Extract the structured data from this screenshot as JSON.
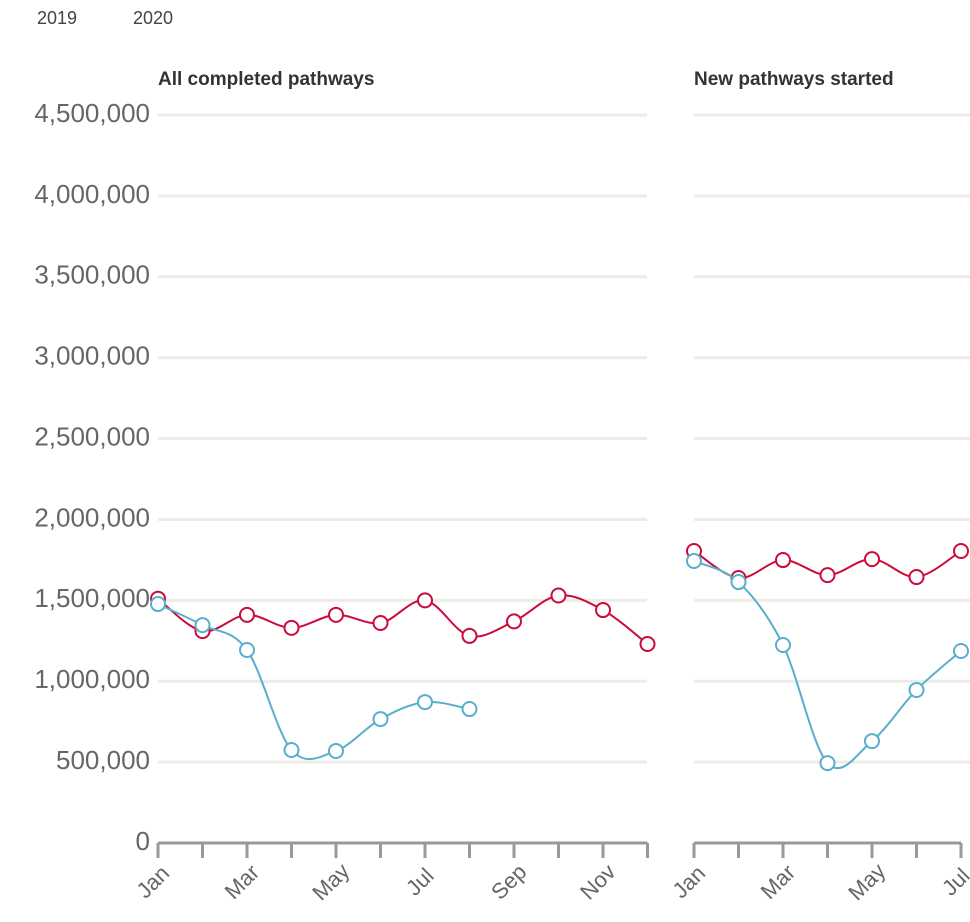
{
  "chart_data": [
    {
      "type": "line",
      "title": "All completed pathways",
      "categories": [
        "Jan",
        null,
        "Mar",
        null,
        "May",
        null,
        "Jul",
        null,
        "Sep",
        null,
        "Nov",
        null
      ],
      "series": [
        {
          "name": "2019",
          "color": "#cc0a3c",
          "values": [
            1510000,
            1310000,
            1410000,
            1330000,
            1410000,
            1360000,
            1500000,
            1280000,
            1370000,
            1530000,
            1440000,
            1230000
          ]
        },
        {
          "name": "2020",
          "color": "#59aecb",
          "values": [
            1477000,
            1347000,
            1193000,
            575000,
            569000,
            766000,
            871000,
            828000,
            null,
            null,
            null,
            null
          ]
        }
      ],
      "ylim": [
        0,
        4500000
      ],
      "yticks": [
        0,
        {
          "value": 500000,
          "label": "500,000"
        },
        {
          "value": 1000000,
          "label": "1,000,000"
        },
        {
          "value": 1500000,
          "label": "1,500,000"
        },
        {
          "value": 2000000,
          "label": "2,000,000"
        },
        {
          "value": 2500000,
          "label": "2,500,000"
        },
        {
          "value": 3000000,
          "label": "3,000,000"
        },
        {
          "value": 3500000,
          "label": "3,500,000"
        },
        {
          "value": 4000000,
          "label": "4,000,000"
        },
        {
          "value": 4500000,
          "label": "4,500,000"
        }
      ],
      "grid": true
    },
    {
      "type": "line",
      "title": "New pathways started",
      "categories": [
        "Jan",
        null,
        "Mar",
        null,
        "May",
        null,
        "Jul"
      ],
      "series": [
        {
          "color": "#cc0a3c",
          "values": [
            1805000,
            1638000,
            1749000,
            1656000,
            1755000,
            1644000,
            1805000
          ]
        },
        {
          "color": "#59aecb",
          "values": [
            1743000,
            1613000,
            1224000,
            494000,
            630000,
            946000,
            1187000
          ]
        }
      ],
      "ylim": [
        0,
        4500000
      ],
      "yticks": [
        0,
        500000,
        1000000,
        1500000,
        2000000,
        2500000,
        3000000,
        3500000,
        4000000,
        4500000
      ],
      "grid": true
    }
  ]
}
